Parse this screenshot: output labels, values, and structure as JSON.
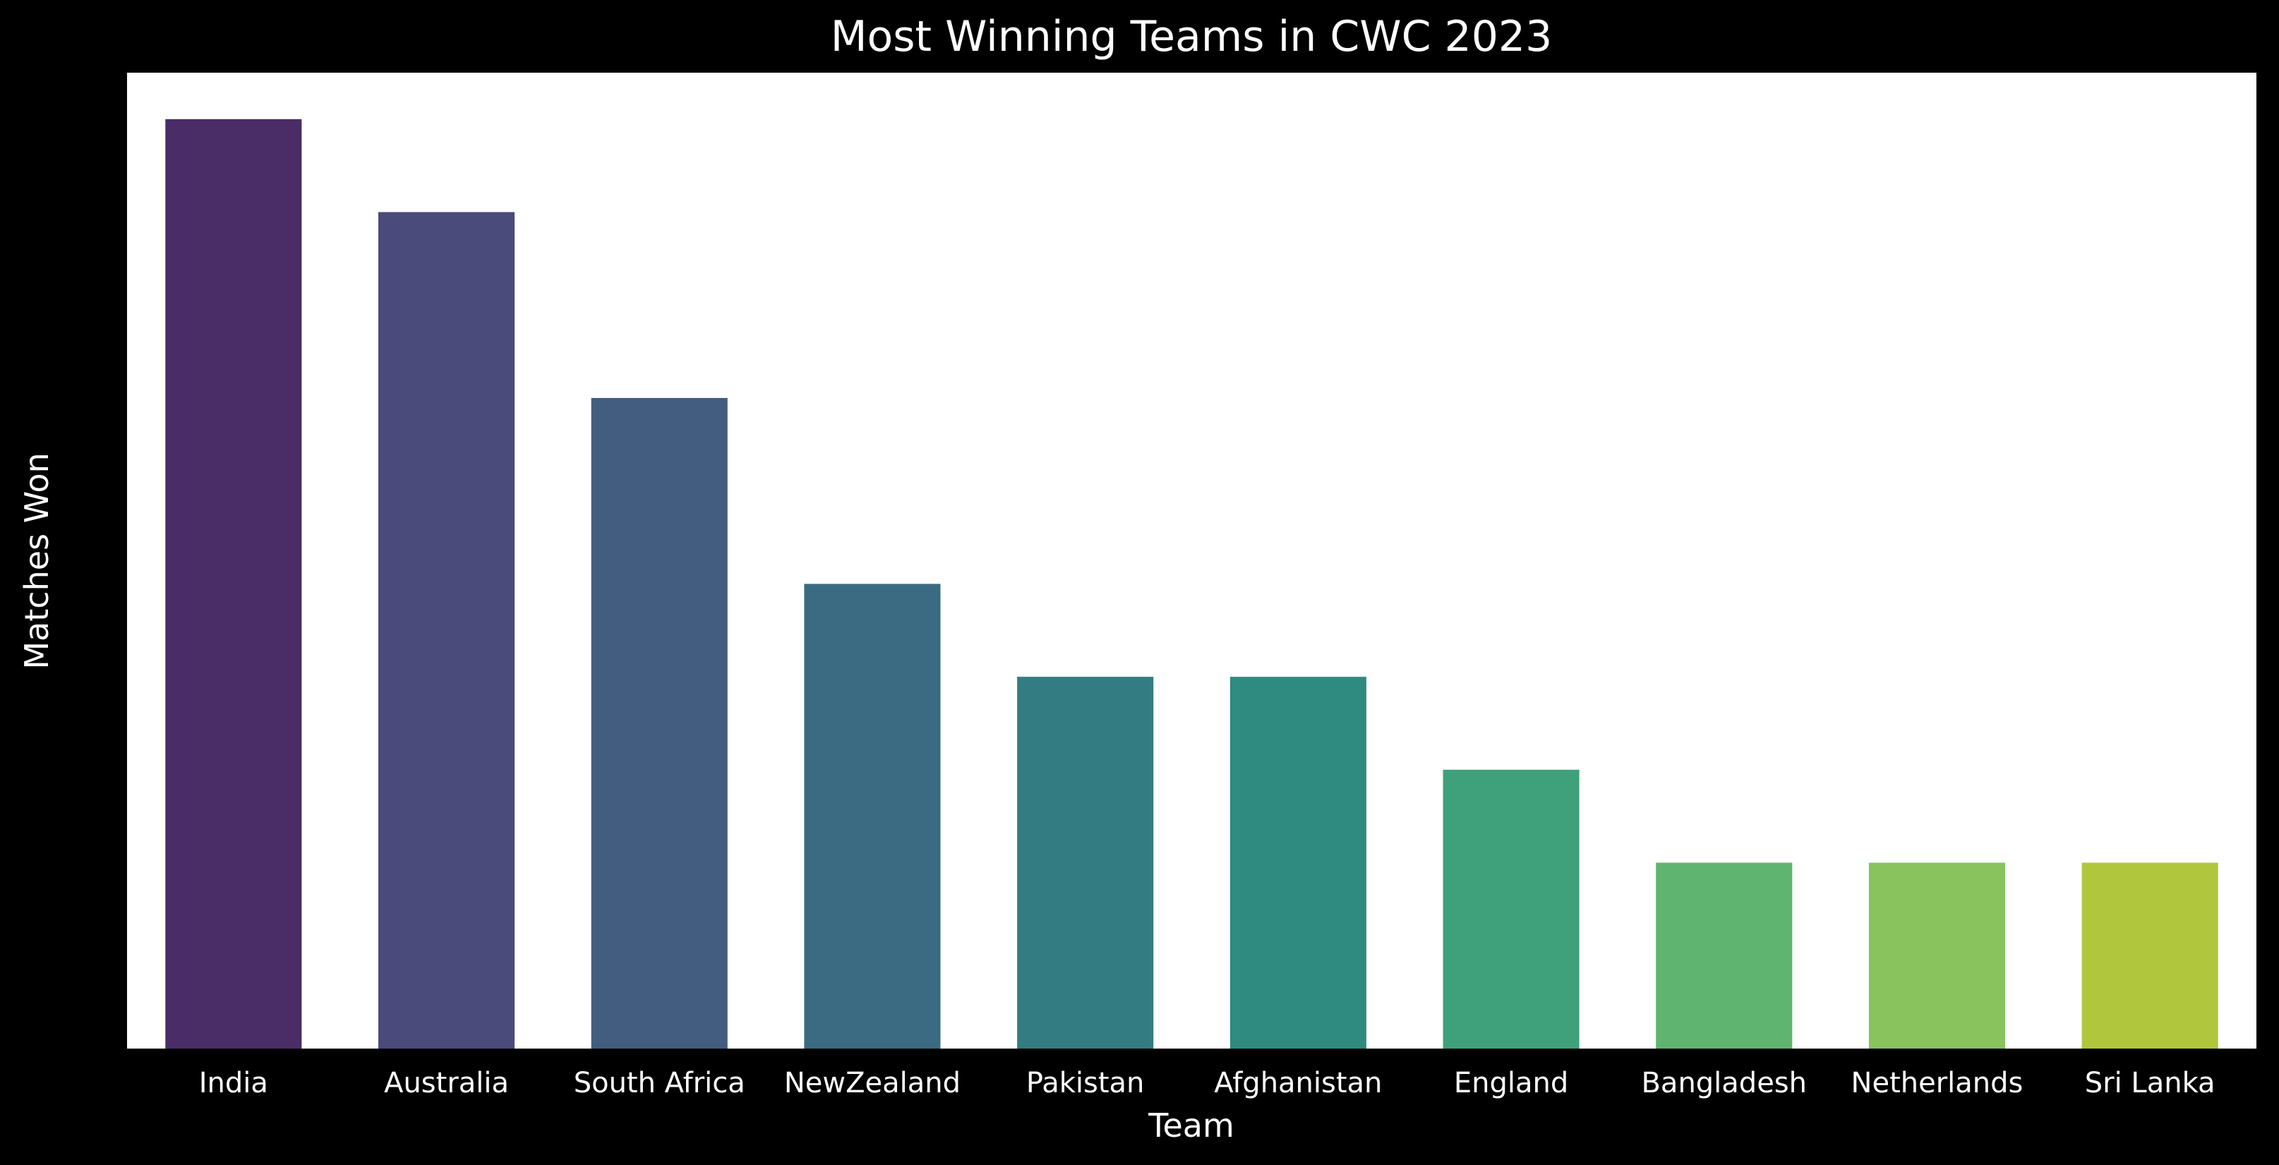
{
  "chart_data": {
    "type": "bar",
    "title": "Most Winning Teams in CWC 2023",
    "xlabel": "Team",
    "ylabel": "Matches Won",
    "categories": [
      "India",
      "Australia",
      "South Africa",
      "NewZealand",
      "Pakistan",
      "Afghanistan",
      "England",
      "Bangladesh",
      "Netherlands",
      "Sri Lanka"
    ],
    "values": [
      10,
      9,
      7,
      5,
      4,
      4,
      3,
      2,
      2,
      2
    ],
    "ylim": [
      0,
      10.5
    ],
    "yticks_visible": false,
    "grid": false,
    "legend": "none",
    "colors": [
      "#4a2d66",
      "#4a4a7b",
      "#435d80",
      "#3b6b82",
      "#337c81",
      "#2f8a7f",
      "#3fa17b",
      "#5fb56f",
      "#88c35e",
      "#b0c63c"
    ],
    "background": "#000000",
    "plot_background": "#ffffff",
    "text_color": "#ffffff"
  }
}
